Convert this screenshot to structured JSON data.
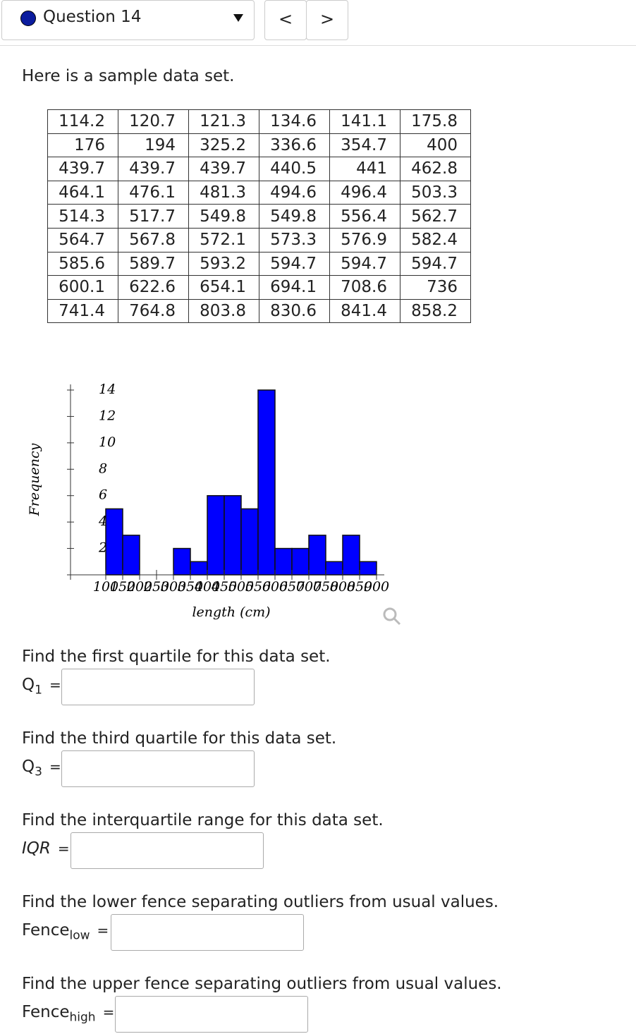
{
  "header": {
    "question": "Question 14",
    "prev": "<",
    "next": ">"
  },
  "intro": "Here is a sample data set.",
  "table": {
    "rows": [
      [
        114.2,
        120.7,
        121.3,
        134.6,
        141.1,
        175.8
      ],
      [
        176,
        194,
        325.2,
        336.6,
        354.7,
        400
      ],
      [
        439.7,
        439.7,
        439.7,
        440.5,
        441,
        462.8
      ],
      [
        464.1,
        476.1,
        481.3,
        494.6,
        496.4,
        503.3
      ],
      [
        514.3,
        517.7,
        549.8,
        549.8,
        556.4,
        562.7
      ],
      [
        564.7,
        567.8,
        572.1,
        573.3,
        576.9,
        582.4
      ],
      [
        585.6,
        589.7,
        593.2,
        594.7,
        594.7,
        594.7
      ],
      [
        600.1,
        622.6,
        654.1,
        694.1,
        708.6,
        736
      ],
      [
        741.4,
        764.8,
        803.8,
        830.6,
        841.4,
        858.2
      ]
    ]
  },
  "chart_data": {
    "type": "histogram",
    "xlabel": "length (cm)",
    "ylabel": "Frequency",
    "bins": [
      100,
      150,
      200,
      250,
      300,
      350,
      400,
      450,
      500,
      550,
      600,
      650,
      700,
      750,
      800,
      850,
      900
    ],
    "values": [
      5,
      3,
      0,
      0,
      2,
      1,
      6,
      6,
      5,
      14,
      2,
      2,
      3,
      1,
      3,
      1
    ],
    "color": "#0000ff",
    "ylim": [
      0,
      14
    ],
    "yticks": [
      2,
      4,
      6,
      8,
      10,
      12,
      14
    ]
  },
  "equals": "=",
  "questions": [
    {
      "prompt": "Find the first quartile for this data set.",
      "label": "Q",
      "sub": "1"
    },
    {
      "prompt": "Find the third quartile for this data set.",
      "label": "Q",
      "sub": "3"
    },
    {
      "prompt": "Find the interquartile range for this data set.",
      "label": "IQR"
    },
    {
      "prompt": "Find the lower fence separating outliers from usual values.",
      "label": "Fence",
      "sub": "low"
    },
    {
      "prompt": "Find the upper fence separating outliers from usual values.",
      "label": "Fence",
      "sub": "high"
    }
  ]
}
